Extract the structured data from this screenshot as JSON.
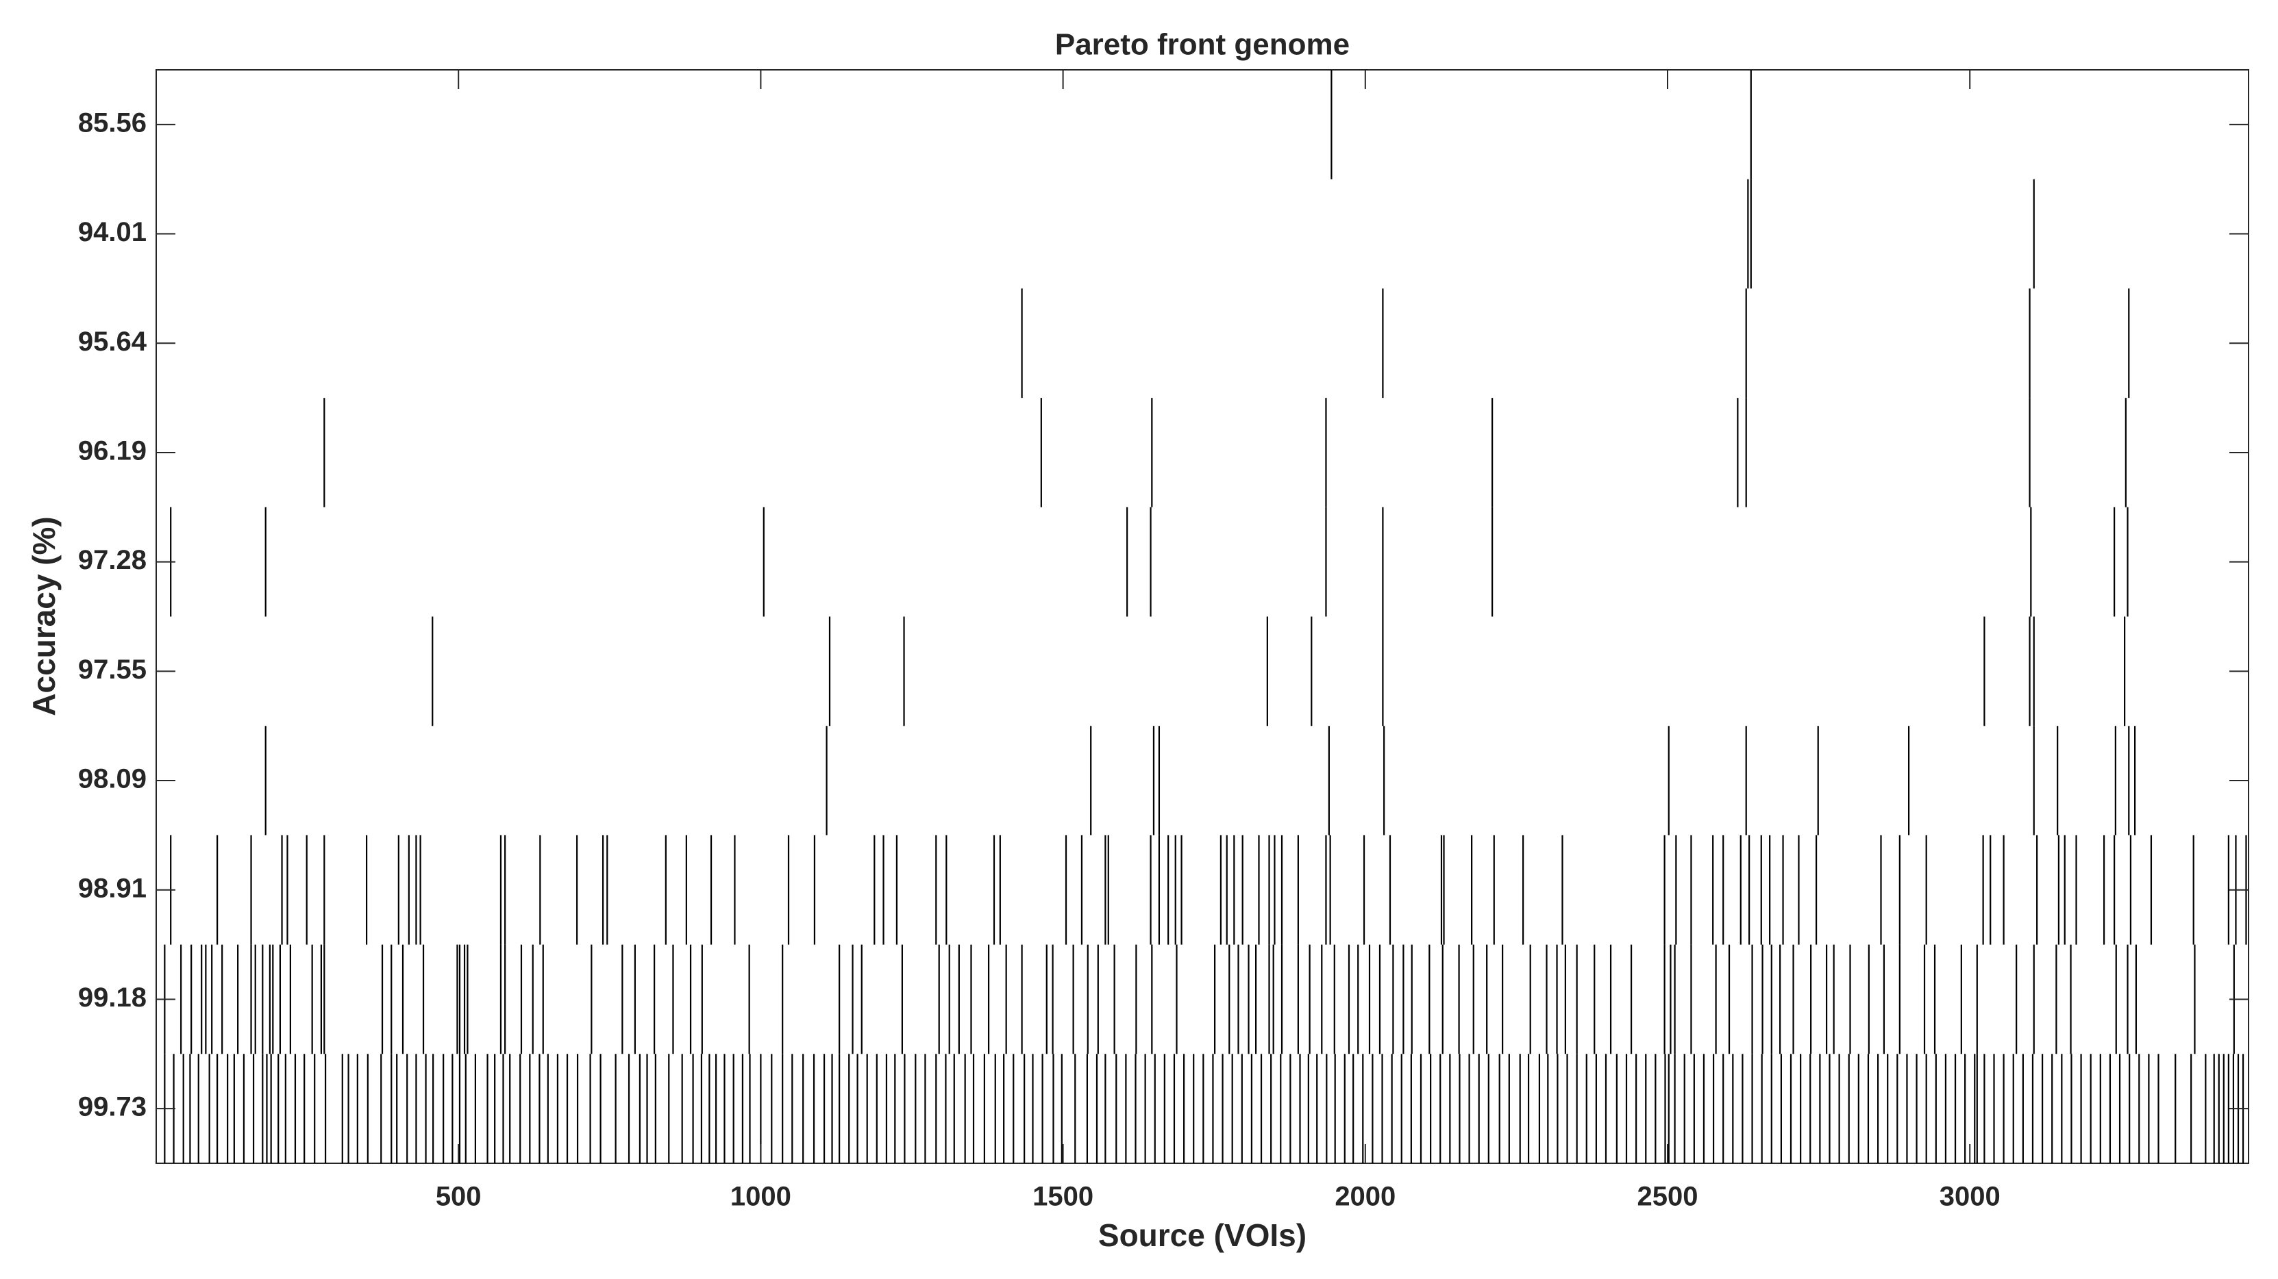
{
  "chart_data": {
    "type": "raster",
    "title": "Pareto front genome",
    "xlabel": "Source (VOIs)",
    "ylabel": "Accuracy (%)",
    "xlim": [
      0,
      3461
    ],
    "xticks": [
      500,
      1000,
      1500,
      2000,
      2500,
      3000
    ],
    "categories": [
      "85.56",
      "94.01",
      "95.64",
      "96.19",
      "97.28",
      "97.55",
      "98.09",
      "98.91",
      "99.18",
      "99.73"
    ],
    "color": "#000000",
    "events": [
      [
        1944,
        2638
      ],
      [
        2633,
        2638,
        3106
      ],
      [
        1432,
        2029,
        2630,
        3099,
        3263
      ],
      [
        278,
        1464,
        1647,
        1935,
        2210,
        2616,
        2630,
        3099,
        3258
      ],
      [
        24,
        181,
        1005,
        1606,
        1645,
        1935,
        2029,
        2210,
        3101,
        3239,
        3261
      ],
      [
        457,
        1114,
        1237,
        1838,
        1911,
        2029,
        3024,
        3099,
        3106,
        3256
      ],
      [
        181,
        1109,
        1546,
        1650,
        1659,
        1940,
        2031,
        2502,
        2630,
        2749,
        2899,
        3106,
        3145,
        3241,
        3263,
        3273
      ],
      [
        24,
        101,
        157,
        208,
        217,
        249,
        278,
        348,
        401,
        418,
        430,
        437,
        570,
        577,
        635,
        696,
        739,
        746,
        843,
        877,
        918,
        957,
        1046,
        1089,
        1188,
        1203,
        1225,
        1290,
        1307,
        1386,
        1396,
        1505,
        1531,
        1570,
        1575,
        1645,
        1659,
        1674,
        1686,
        1696,
        1761,
        1771,
        1783,
        1797,
        1824,
        1841,
        1850,
        1862,
        1889,
        1935,
        1942,
        1998,
        2041,
        2126,
        2130,
        2176,
        2213,
        2261,
        2326,
        2495,
        2514,
        2539,
        2575,
        2592,
        2621,
        2635,
        2655,
        2669,
        2691,
        2717,
        2746,
        2853,
        2884,
        2928,
        3022,
        3034,
        3056,
        3111,
        3147,
        3157,
        3176,
        3222,
        3239,
        3266,
        3300,
        3370,
        3428,
        3440,
        3457
      ],
      [
        14,
        41,
        58,
        75,
        82,
        92,
        109,
        135,
        157,
        164,
        176,
        188,
        193,
        205,
        222,
        258,
        273,
        278,
        374,
        389,
        408,
        442,
        498,
        502,
        510,
        515,
        570,
        577,
        604,
        623,
        640,
        720,
        771,
        792,
        824,
        855,
        884,
        903,
        981,
        1036,
        1130,
        1152,
        1167,
        1234,
        1295,
        1312,
        1328,
        1348,
        1377,
        1406,
        1432,
        1473,
        1483,
        1517,
        1541,
        1558,
        1585,
        1621,
        1647,
        1688,
        1751,
        1775,
        1790,
        1807,
        1819,
        1841,
        1848,
        1862,
        1889,
        1908,
        1928,
        1949,
        1973,
        1988,
        2007,
        2024,
        2046,
        2063,
        2077,
        2106,
        2128,
        2155,
        2179,
        2201,
        2227,
        2273,
        2300,
        2317,
        2331,
        2350,
        2379,
        2406,
        2440,
        2495,
        2505,
        2512,
        2539,
        2580,
        2602,
        2640,
        2657,
        2672,
        2686,
        2708,
        2737,
        2763,
        2775,
        2802,
        2833,
        2858,
        2884,
        2925,
        2942,
        2986,
        3012,
        3077,
        3106,
        3143,
        3167,
        3242,
        3261,
        3275,
        3372,
        3437
      ],
      [
        14,
        29,
        45,
        56,
        70,
        88,
        101,
        118,
        129,
        145,
        161,
        176,
        183,
        190,
        202,
        214,
        230,
        245,
        262,
        280,
        308,
        318,
        333,
        350,
        372,
        389,
        398,
        415,
        430,
        446,
        458,
        475,
        490,
        502,
        512,
        528,
        548,
        560,
        574,
        585,
        602,
        618,
        634,
        648,
        664,
        680,
        697,
        718,
        735,
        760,
        782,
        800,
        812,
        826,
        848,
        870,
        888,
        902,
        915,
        926,
        940,
        955,
        970,
        982,
        1000,
        1018,
        1036,
        1052,
        1070,
        1088,
        1105,
        1118,
        1130,
        1146,
        1160,
        1176,
        1192,
        1208,
        1222,
        1238,
        1256,
        1272,
        1290,
        1306,
        1320,
        1338,
        1352,
        1370,
        1388,
        1402,
        1418,
        1436,
        1450,
        1466,
        1484,
        1498,
        1520,
        1540,
        1556,
        1570,
        1588,
        1604,
        1620,
        1636,
        1652,
        1668,
        1684,
        1700,
        1716,
        1732,
        1748,
        1764,
        1780,
        1796,
        1812,
        1828,
        1844,
        1860,
        1876,
        1892,
        1906,
        1920,
        1936,
        1950,
        1966,
        1980,
        1996,
        2012,
        2028,
        2044,
        2060,
        2076,
        2092,
        2108,
        2124,
        2140,
        2156,
        2172,
        2188,
        2204,
        2222,
        2238,
        2256,
        2270,
        2288,
        2302,
        2318,
        2334,
        2350,
        2366,
        2382,
        2398,
        2416,
        2432,
        2448,
        2464,
        2480,
        2496,
        2502,
        2512,
        2528,
        2544,
        2560,
        2576,
        2592,
        2608,
        2624,
        2640,
        2656,
        2672,
        2688,
        2704,
        2720,
        2736,
        2752,
        2768,
        2784,
        2800,
        2816,
        2832,
        2848,
        2864,
        2880,
        2896,
        2912,
        2928,
        2944,
        2960,
        2976,
        2992,
        3008,
        3012,
        3024,
        3040,
        3056,
        3072,
        3088,
        3104,
        3120,
        3136,
        3152,
        3168,
        3184,
        3200,
        3216,
        3232,
        3248,
        3264,
        3280,
        3296,
        3312,
        3340,
        3366,
        3390,
        3404,
        3412,
        3420,
        3428,
        3436,
        3444,
        3452
      ]
    ]
  }
}
